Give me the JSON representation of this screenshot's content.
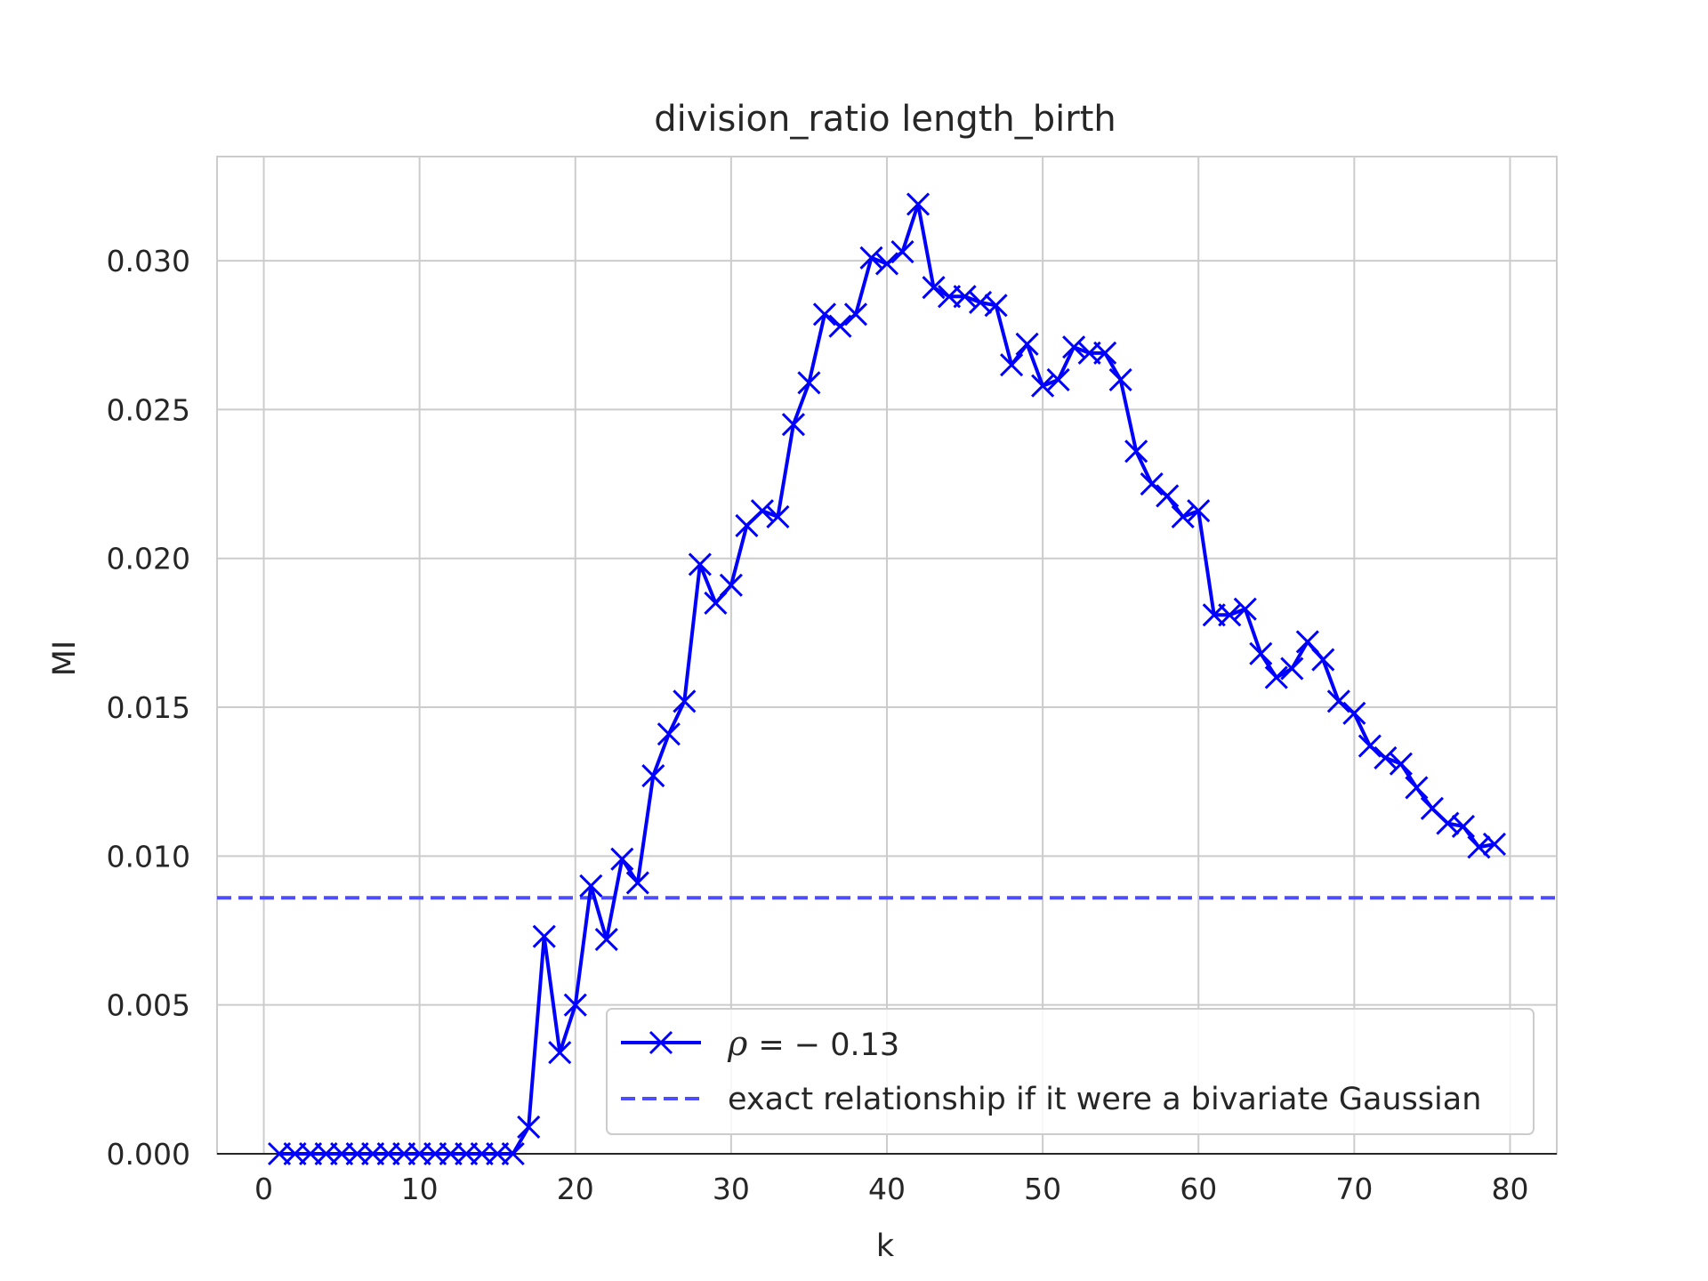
{
  "chart_data": {
    "type": "line",
    "title": "division_ratio length_birth",
    "xlabel": "k",
    "ylabel": "MI",
    "xlim": [
      -3,
      83
    ],
    "ylim": [
      0,
      0.0335
    ],
    "xticks": [
      0,
      10,
      20,
      30,
      40,
      50,
      60,
      70,
      80
    ],
    "yticks": [
      0.0,
      0.005,
      0.01,
      0.015,
      0.02,
      0.025,
      0.03
    ],
    "ytick_labels": [
      "0.000",
      "0.005",
      "0.010",
      "0.015",
      "0.020",
      "0.025",
      "0.030"
    ],
    "xtick_labels": [
      "0",
      "10",
      "20",
      "30",
      "40",
      "50",
      "60",
      "70",
      "80"
    ],
    "grid": true,
    "legend_position": "lower-right",
    "series": [
      {
        "name": "ρ = − 0.13",
        "name_prefix": "ρ",
        "name_value": "= − 0.13",
        "style": "solid-line-x-markers",
        "color": "#0000ff",
        "x": [
          1,
          2,
          3,
          4,
          5,
          6,
          7,
          8,
          9,
          10,
          11,
          12,
          13,
          14,
          15,
          16,
          17,
          18,
          19,
          20,
          21,
          22,
          23,
          24,
          25,
          26,
          27,
          28,
          29,
          30,
          31,
          32,
          33,
          34,
          35,
          36,
          37,
          38,
          39,
          40,
          41,
          42,
          43,
          44,
          45,
          46,
          47,
          48,
          49,
          50,
          51,
          52,
          53,
          54,
          55,
          56,
          57,
          58,
          59,
          60,
          61,
          62,
          63,
          64,
          65,
          66,
          67,
          68,
          69,
          70,
          71,
          72,
          73,
          74,
          75,
          76,
          77,
          78,
          79
        ],
        "y": [
          0.0,
          0.0,
          0.0,
          0.0,
          0.0,
          0.0,
          0.0,
          0.0,
          0.0,
          0.0,
          0.0,
          0.0,
          0.0,
          0.0,
          0.0,
          0.0,
          0.0009,
          0.0073,
          0.0034,
          0.005,
          0.009,
          0.0072,
          0.0099,
          0.0091,
          0.0127,
          0.0141,
          0.0152,
          0.0198,
          0.0185,
          0.0191,
          0.0211,
          0.0216,
          0.0214,
          0.0245,
          0.0259,
          0.0282,
          0.0278,
          0.0282,
          0.0301,
          0.0299,
          0.0303,
          0.0319,
          0.0291,
          0.0288,
          0.0288,
          0.0286,
          0.0285,
          0.0265,
          0.0272,
          0.0258,
          0.026,
          0.0271,
          0.0269,
          0.0269,
          0.026,
          0.0236,
          0.0225,
          0.0221,
          0.0214,
          0.0216,
          0.0181,
          0.0181,
          0.0183,
          0.0168,
          0.016,
          0.0163,
          0.0172,
          0.0166,
          0.0152,
          0.0148,
          0.0137,
          0.0133,
          0.0131,
          0.0123,
          0.0116,
          0.0111,
          0.011,
          0.0103,
          0.0104
        ]
      },
      {
        "name": "exact relationship if it were a bivariate Gaussian",
        "style": "dashed-horizontal",
        "color": "#4d4dff",
        "y": 0.0086
      }
    ]
  }
}
